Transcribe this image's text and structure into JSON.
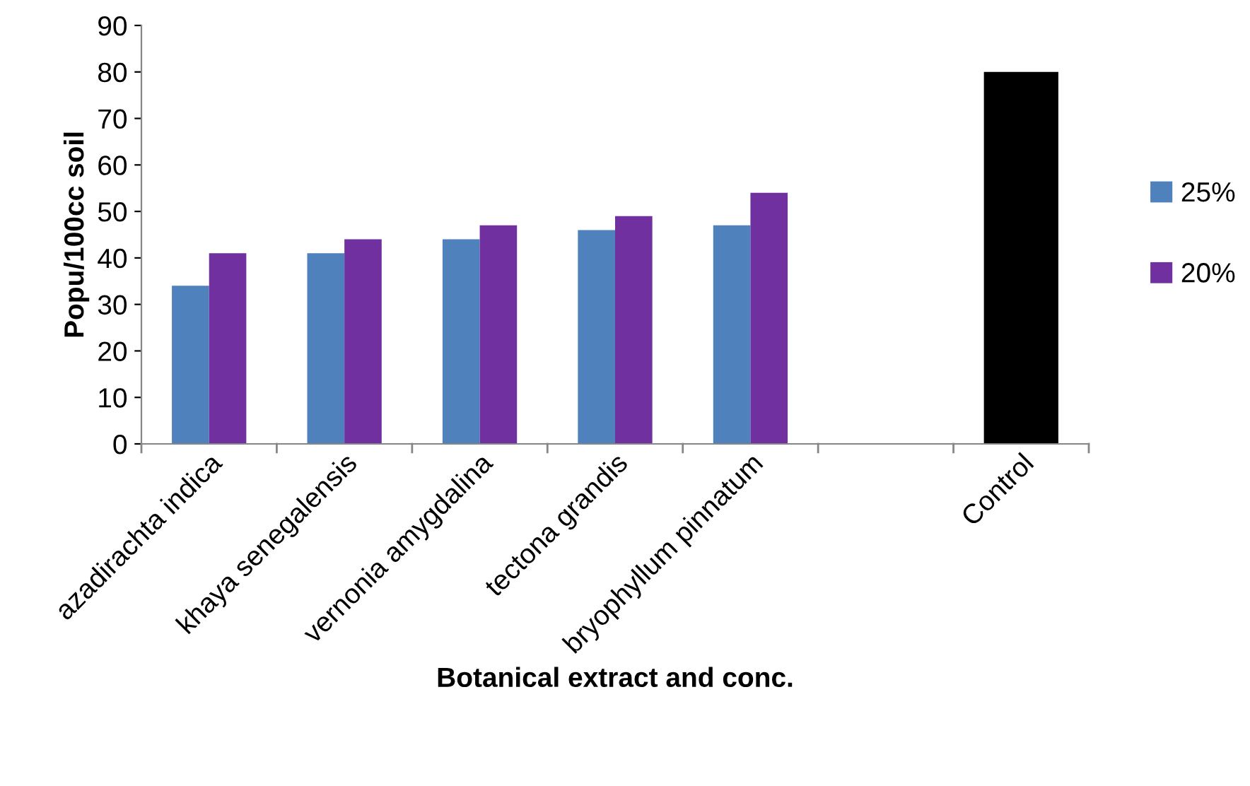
{
  "chart_data": {
    "type": "bar",
    "xlabel": "Botanical extract and conc.",
    "ylabel": "Popu/100cc soil",
    "categories": [
      "azadirachta indica",
      "khaya senegalensis",
      "vernonia amygdalina",
      "tectona grandis",
      "bryophyllum pinnatum",
      null,
      "Control"
    ],
    "series": [
      {
        "name": "25%",
        "color": "#4f81bd",
        "values": [
          34,
          41,
          44,
          46,
          47,
          0,
          null
        ]
      },
      {
        "name": "20%",
        "color": "#7030a0",
        "values": [
          41,
          44,
          47,
          49,
          54,
          0,
          null
        ]
      },
      {
        "color": "#000000",
        "values": [
          null,
          null,
          null,
          null,
          null,
          null,
          80
        ]
      }
    ],
    "ylim": [
      0,
      90
    ],
    "yticks": [
      0,
      10,
      20,
      30,
      40,
      50,
      60,
      70,
      80,
      90
    ],
    "grid": false,
    "legend": "right"
  }
}
